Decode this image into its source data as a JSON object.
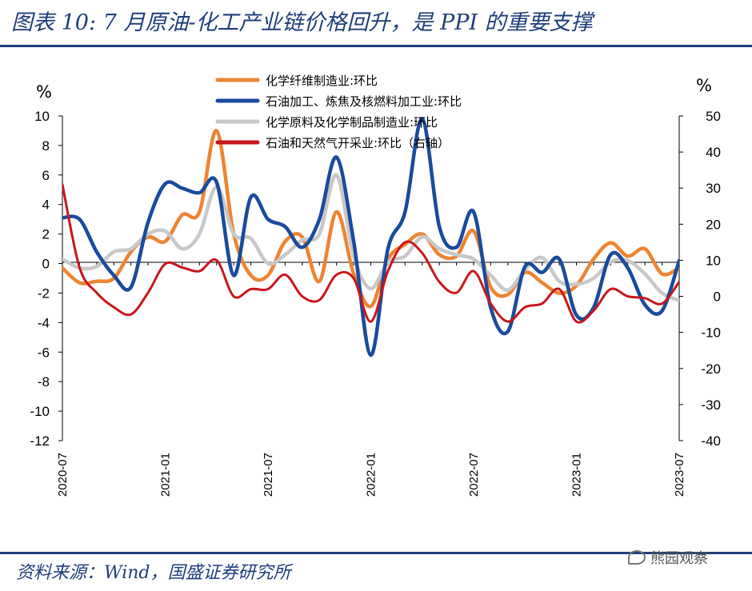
{
  "header": {
    "title": "图表 10: 7 月原油-化工产业链价格回升，是 PPI 的重要支撑"
  },
  "footer": {
    "source": "资料来源：Wind，国盛证券研究所",
    "watermark": "熊园观察"
  },
  "chart_data": {
    "type": "line",
    "left_unit": "%",
    "right_unit": "%",
    "ylim_left": [
      -12,
      10
    ],
    "ylim_right": [
      -40,
      50
    ],
    "yticks_left": [
      10,
      8,
      6,
      4,
      2,
      0,
      -2,
      -4,
      -6,
      -8,
      -10,
      -12
    ],
    "yticks_right": [
      50,
      40,
      30,
      20,
      10,
      0,
      -10,
      -20,
      -30,
      -40
    ],
    "x": [
      "2020-07",
      "2020-08",
      "2020-09",
      "2020-10",
      "2020-11",
      "2020-12",
      "2021-01",
      "2021-02",
      "2021-03",
      "2021-04",
      "2021-05",
      "2021-06",
      "2021-07",
      "2021-08",
      "2021-09",
      "2021-10",
      "2021-11",
      "2021-12",
      "2022-01",
      "2022-02",
      "2022-03",
      "2022-04",
      "2022-05",
      "2022-06",
      "2022-07",
      "2022-08",
      "2022-09",
      "2022-10",
      "2022-11",
      "2022-12",
      "2023-01",
      "2023-02",
      "2023-03",
      "2023-04",
      "2023-05",
      "2023-06",
      "2023-07"
    ],
    "x_tick_labels": [
      "2020-07",
      "2021-01",
      "2021-07",
      "2022-01",
      "2022-07",
      "2023-01",
      "2023-07"
    ],
    "legend_position": "top-center",
    "series": [
      {
        "name": "化学纤维制造业:环比",
        "color": "#ee8433",
        "axis": "left",
        "values": [
          -0.3,
          -1.3,
          -1.2,
          -1.0,
          0.8,
          1.8,
          1.5,
          3.3,
          3.5,
          9.0,
          2.0,
          -0.8,
          -0.8,
          1.5,
          1.8,
          -1.2,
          3.5,
          -0.7,
          -2.9,
          0.3,
          1.3,
          2.0,
          0.6,
          0.5,
          2.2,
          -1.6,
          -2.1,
          -0.6,
          -1.3,
          -2.0,
          -1.5,
          0.3,
          1.4,
          0.5,
          1.0,
          -0.7,
          -0.3
        ]
      },
      {
        "name": "石油加工、炼焦及核燃料加工业:环比",
        "color": "#1a4b9c",
        "axis": "left",
        "values": [
          3.1,
          3.0,
          0.8,
          -0.8,
          -1.6,
          2.8,
          5.4,
          5.1,
          4.8,
          5.5,
          -0.8,
          4.5,
          3.0,
          2.5,
          1.1,
          3.0,
          7.2,
          1.5,
          -6.2,
          1.0,
          3.5,
          9.8,
          2.5,
          1.1,
          3.5,
          -3.0,
          -4.6,
          -0.2,
          -0.6,
          0.3,
          -3.5,
          -3.0,
          0.6,
          -0.3,
          -2.8,
          -3.2,
          0.2
        ]
      },
      {
        "name": "化学原料及化学制品制造业:环比",
        "color": "#c8c8c8",
        "axis": "left",
        "values": [
          0.3,
          -0.3,
          -0.2,
          0.8,
          1.0,
          2.0,
          2.2,
          1.0,
          2.0,
          5.2,
          2.0,
          1.7,
          0.0,
          0.6,
          1.6,
          2.0,
          6.0,
          0.5,
          -1.7,
          0.1,
          0.5,
          1.8,
          1.0,
          0.6,
          0.3,
          -0.8,
          -1.8,
          -0.4,
          0.4,
          -1.2,
          -1.4,
          -1.0,
          0.1,
          0.2,
          -0.7,
          -2.0,
          -2.5
        ]
      },
      {
        "name": "石油和天然气开采业:环比（右轴）",
        "color": "#c8161d",
        "axis": "right",
        "values": [
          31,
          8,
          1,
          -3,
          -5,
          1,
          9,
          8,
          7,
          10,
          0,
          2,
          2,
          6,
          0,
          -1,
          6,
          5,
          -7,
          7,
          15,
          12,
          4,
          1,
          7,
          -2,
          -7,
          -3,
          -2,
          2,
          -7,
          -4,
          2,
          0,
          -0.5,
          -2,
          4
        ]
      }
    ]
  }
}
